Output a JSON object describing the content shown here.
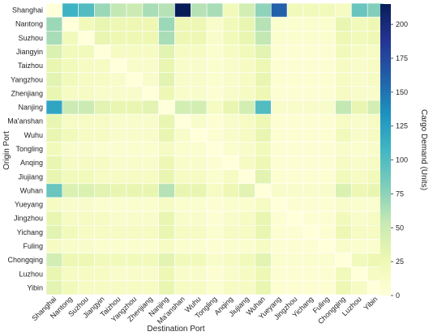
{
  "chart_data": {
    "type": "heatmap",
    "title": "",
    "xlabel": "Destination Port",
    "ylabel": "Origin Port",
    "x_categories": [
      "Shanghai",
      "Nantong",
      "Suzhou",
      "Jiangyin",
      "Taizhou",
      "Yangzhou",
      "Zhenjiang",
      "Nanjing",
      "Ma'anshan",
      "Wuhu",
      "Tongling",
      "Anqing",
      "Jiujiang",
      "Wuhan",
      "Yueyang",
      "Jingzhou",
      "Yichang",
      "Fuling",
      "Chongqing",
      "Luzhou",
      "Yibin"
    ],
    "y_categories": [
      "Shanghai",
      "Nantong",
      "Suzhou",
      "Jiangyin",
      "Taizhou",
      "Yangzhou",
      "Zhenjiang",
      "Nanjing",
      "Ma'anshan",
      "Wuhu",
      "Tongling",
      "Anqing",
      "Jiujiang",
      "Wuhan",
      "Yueyang",
      "Jingzhou",
      "Yichang",
      "Fuling",
      "Chongqing",
      "Luzhou",
      "Yibin"
    ],
    "values": [
      [
        0,
        110,
        100,
        70,
        55,
        50,
        65,
        60,
        215,
        60,
        65,
        20,
        45,
        75,
        160,
        20,
        20,
        20,
        15,
        90,
        80
      ],
      [
        70,
        0,
        20,
        30,
        25,
        25,
        25,
        70,
        25,
        25,
        10,
        20,
        30,
        60,
        8,
        8,
        8,
        8,
        30,
        20,
        25
      ],
      [
        65,
        20,
        0,
        30,
        25,
        25,
        25,
        65,
        25,
        25,
        10,
        20,
        30,
        55,
        8,
        8,
        8,
        8,
        25,
        20,
        25
      ],
      [
        40,
        20,
        20,
        0,
        15,
        15,
        15,
        35,
        15,
        15,
        8,
        15,
        20,
        35,
        5,
        5,
        5,
        5,
        20,
        15,
        15
      ],
      [
        30,
        20,
        15,
        15,
        0,
        10,
        10,
        30,
        10,
        10,
        8,
        10,
        15,
        25,
        5,
        5,
        5,
        5,
        15,
        10,
        15
      ],
      [
        35,
        20,
        15,
        15,
        10,
        0,
        10,
        35,
        10,
        10,
        8,
        10,
        15,
        30,
        5,
        5,
        5,
        5,
        15,
        10,
        15
      ],
      [
        30,
        15,
        15,
        10,
        10,
        10,
        0,
        25,
        10,
        10,
        5,
        10,
        15,
        25,
        5,
        5,
        5,
        5,
        15,
        10,
        10
      ],
      [
        120,
        50,
        50,
        35,
        30,
        30,
        35,
        0,
        45,
        45,
        15,
        30,
        45,
        100,
        10,
        10,
        10,
        10,
        55,
        30,
        45
      ],
      [
        30,
        15,
        15,
        15,
        10,
        10,
        10,
        30,
        0,
        10,
        5,
        10,
        15,
        25,
        5,
        5,
        5,
        5,
        15,
        10,
        15
      ],
      [
        30,
        20,
        15,
        15,
        10,
        10,
        10,
        30,
        10,
        0,
        5,
        10,
        15,
        30,
        5,
        5,
        5,
        5,
        20,
        10,
        15
      ],
      [
        20,
        10,
        10,
        8,
        8,
        8,
        8,
        15,
        8,
        8,
        0,
        8,
        10,
        20,
        5,
        5,
        5,
        5,
        10,
        8,
        10
      ],
      [
        30,
        15,
        15,
        15,
        10,
        10,
        10,
        25,
        10,
        10,
        5,
        0,
        15,
        25,
        5,
        5,
        5,
        5,
        15,
        10,
        15
      ],
      [
        30,
        20,
        20,
        15,
        15,
        15,
        15,
        30,
        15,
        15,
        8,
        15,
        0,
        35,
        5,
        5,
        5,
        5,
        20,
        15,
        20
      ],
      [
        90,
        40,
        40,
        35,
        30,
        30,
        30,
        60,
        30,
        30,
        15,
        25,
        35,
        0,
        10,
        10,
        10,
        10,
        40,
        25,
        30
      ],
      [
        15,
        10,
        10,
        8,
        8,
        8,
        8,
        15,
        8,
        8,
        5,
        8,
        8,
        15,
        0,
        5,
        5,
        5,
        10,
        8,
        8
      ],
      [
        30,
        15,
        15,
        15,
        10,
        10,
        10,
        30,
        10,
        10,
        5,
        10,
        15,
        30,
        5,
        0,
        5,
        5,
        20,
        10,
        15
      ],
      [
        35,
        20,
        15,
        15,
        15,
        15,
        15,
        30,
        15,
        15,
        8,
        15,
        15,
        30,
        5,
        5,
        0,
        5,
        25,
        15,
        15
      ],
      [
        15,
        10,
        10,
        8,
        8,
        8,
        8,
        15,
        8,
        8,
        5,
        8,
        8,
        15,
        5,
        5,
        5,
        0,
        10,
        8,
        8
      ],
      [
        45,
        25,
        25,
        20,
        20,
        20,
        20,
        35,
        20,
        20,
        10,
        15,
        20,
        35,
        8,
        8,
        8,
        8,
        0,
        20,
        25
      ],
      [
        30,
        15,
        15,
        15,
        10,
        10,
        10,
        25,
        10,
        10,
        5,
        10,
        15,
        25,
        5,
        5,
        5,
        5,
        20,
        0,
        15
      ],
      [
        35,
        20,
        15,
        15,
        15,
        15,
        15,
        30,
        15,
        15,
        8,
        15,
        15,
        30,
        5,
        5,
        5,
        5,
        25,
        15,
        0
      ]
    ],
    "colorbar": {
      "label": "Cargo Demand (Units)",
      "min": 0,
      "max": 215,
      "ticks": [
        0,
        25,
        50,
        75,
        100,
        125,
        150,
        175,
        200
      ],
      "colormap": "YlGnBu",
      "colors": [
        "#ffffd9",
        "#edf8b1",
        "#c7e9b4",
        "#7fcdbb",
        "#41b6c4",
        "#1d91c0",
        "#225ea8",
        "#253494",
        "#081d58"
      ]
    },
    "grid": false
  }
}
